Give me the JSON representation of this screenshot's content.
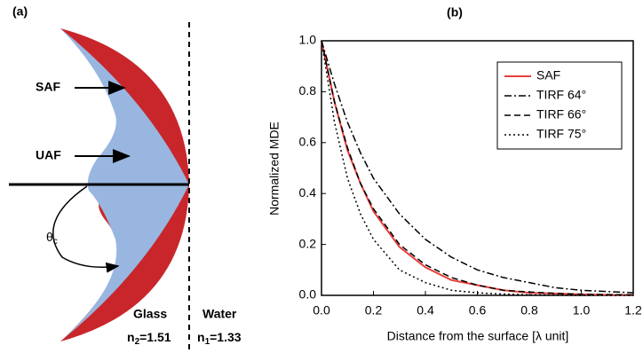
{
  "diagram": {
    "panel_label": "(a)",
    "saf_label": "SAF",
    "uaf_label": "UAF",
    "angle_label": {
      "symbol": "θ",
      "subscript": "c"
    },
    "glass": {
      "name": "Glass",
      "index": {
        "base": "n",
        "subscript": "2",
        "rest": "=1.51"
      }
    },
    "water": {
      "name": "Water",
      "index": {
        "base": "n",
        "subscript": "1",
        "rest": "=1.33"
      }
    }
  },
  "chart_data": {
    "type": "line",
    "title": "(b)",
    "x_label": "Distance from the surface [λ unit]",
    "y_label": "Normalized MDE",
    "x": [
      0,
      0.05,
      0.1,
      0.15,
      0.2,
      0.3,
      0.4,
      0.5,
      0.6,
      0.7,
      0.8,
      0.9,
      1.0,
      1.1,
      1.2
    ],
    "series": [
      {
        "name": "SAF",
        "color": "#e8403c",
        "linestyle": "solid",
        "values": [
          1,
          0.76,
          0.57,
          0.44,
          0.33,
          0.19,
          0.11,
          0.06,
          0.04,
          0.02,
          0.01,
          0.007,
          0.004,
          0.002,
          0.001
        ]
      },
      {
        "name": "TIRF 64°",
        "color": "#000000",
        "linestyle": "dashdot",
        "values": [
          1,
          0.83,
          0.68,
          0.56,
          0.46,
          0.32,
          0.22,
          0.15,
          0.1,
          0.07,
          0.05,
          0.03,
          0.02,
          0.015,
          0.01
        ]
      },
      {
        "name": "TIRF 66°",
        "color": "#000000",
        "linestyle": "dashed",
        "values": [
          1,
          0.76,
          0.58,
          0.44,
          0.34,
          0.2,
          0.12,
          0.07,
          0.04,
          0.02,
          0.013,
          0.008,
          0.004,
          0.003,
          0.002
        ]
      },
      {
        "name": "TIRF 75°",
        "color": "#000000",
        "linestyle": "dotted",
        "values": [
          1,
          0.68,
          0.46,
          0.32,
          0.22,
          0.1,
          0.05,
          0.02,
          0.01,
          0.005,
          0.002,
          0.001,
          0,
          0,
          0
        ]
      }
    ],
    "xlim": [
      0,
      1.2
    ],
    "ylim": [
      0,
      1.0
    ],
    "xticks": [
      {
        "value": 0,
        "label": "0.0"
      },
      {
        "value": 0.2,
        "label": "0.2"
      },
      {
        "value": 0.4,
        "label": "0.4"
      },
      {
        "value": 0.6,
        "label": "0.6"
      },
      {
        "value": 0.8,
        "label": "0.8"
      },
      {
        "value": 1.0,
        "label": "1.0"
      },
      {
        "value": 1.2,
        "label": "1.2"
      }
    ],
    "yticks": [
      {
        "value": 0,
        "label": "0.0"
      },
      {
        "value": 0.2,
        "label": "0.2"
      },
      {
        "value": 0.4,
        "label": "0.4"
      },
      {
        "value": 0.6,
        "label": "0.6"
      },
      {
        "value": 0.8,
        "label": "0.8"
      },
      {
        "value": 1.0,
        "label": "1.0"
      }
    ],
    "legend": "upper right",
    "grid": false
  }
}
